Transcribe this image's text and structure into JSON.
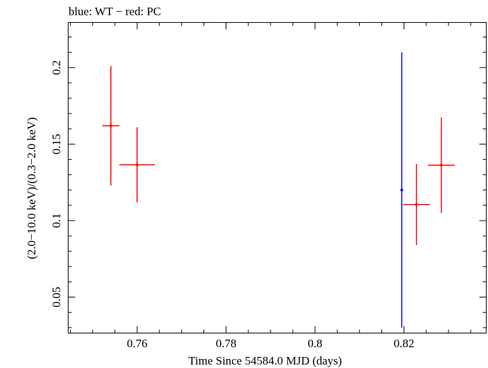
{
  "chart_data": {
    "type": "scatter",
    "title": "blue: WT − red: PC",
    "xlabel": "Time Since 54584.0 MJD (days)",
    "ylabel": "(2.0−10.0 keV)/(0.3−2.0 keV)",
    "xlim": [
      0.7445,
      0.8385
    ],
    "ylim": [
      0.0265,
      0.2295
    ],
    "x_ticks": [
      0.76,
      0.78,
      0.8,
      0.82
    ],
    "x_tick_labels": [
      "0.76",
      "0.78",
      "0.8",
      "0.82"
    ],
    "y_ticks": [
      0.05,
      0.1,
      0.15,
      0.2
    ],
    "y_tick_labels": [
      "0.05",
      "0.1",
      "0.15",
      "0.2"
    ],
    "grid": false,
    "series": [
      {
        "color": "#0000ff",
        "points": [
          {
            "x": 0.8195,
            "xerr": 0.0,
            "y": 0.12,
            "yerr_low": 0.09,
            "yerr_high": 0.09
          }
        ]
      },
      {
        "color": "#ff0000",
        "points": [
          {
            "x": 0.7541,
            "xerr": 0.0019,
            "y": 0.162,
            "yerr_low": 0.039,
            "yerr_high": 0.039
          },
          {
            "x": 0.76,
            "xerr": 0.004,
            "y": 0.1365,
            "yerr_low": 0.0245,
            "yerr_high": 0.0245
          },
          {
            "x": 0.8228,
            "xerr": 0.003,
            "y": 0.1105,
            "yerr_low": 0.0265,
            "yerr_high": 0.0265
          },
          {
            "x": 0.8284,
            "xerr": 0.003,
            "y": 0.1362,
            "yerr_low": 0.0312,
            "yerr_high": 0.0312
          }
        ]
      }
    ]
  }
}
